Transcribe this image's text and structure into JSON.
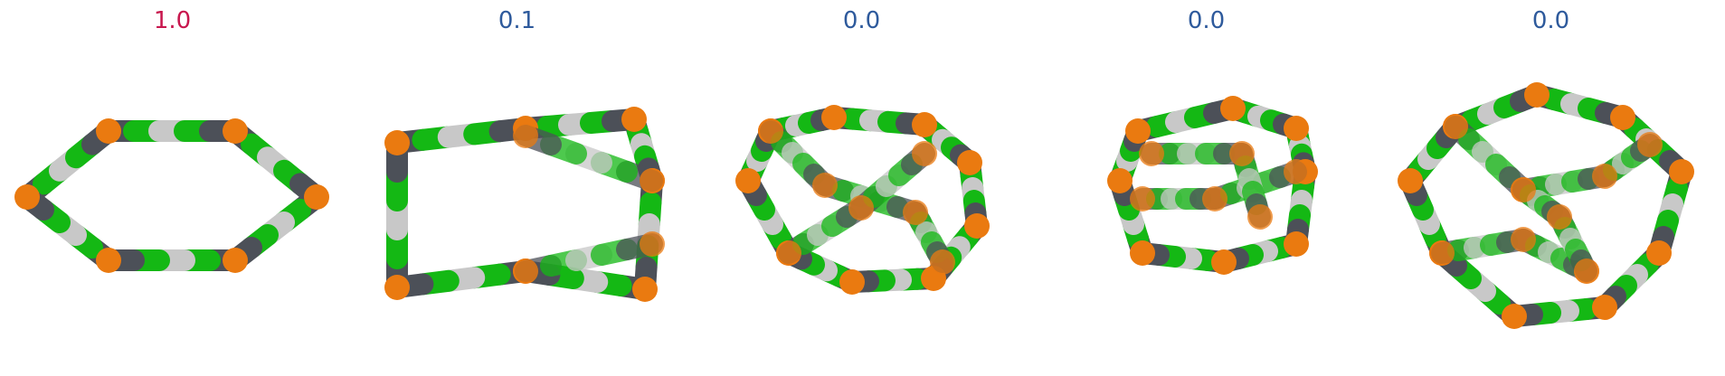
{
  "panels": [
    {
      "score": "1.0",
      "score_color": "#c8174e"
    },
    {
      "score": "0.1",
      "score_color": "#2e5a9c"
    },
    {
      "score": "0.0",
      "score_color": "#2e5a9c"
    },
    {
      "score": "0.0",
      "score_color": "#2e5a9c"
    },
    {
      "score": "0.0",
      "score_color": "#2e5a9c"
    }
  ],
  "colors": {
    "green": "#14b814",
    "white": "#c8c8c8",
    "dark": "#4c5058",
    "orange": "#ea7a10"
  }
}
